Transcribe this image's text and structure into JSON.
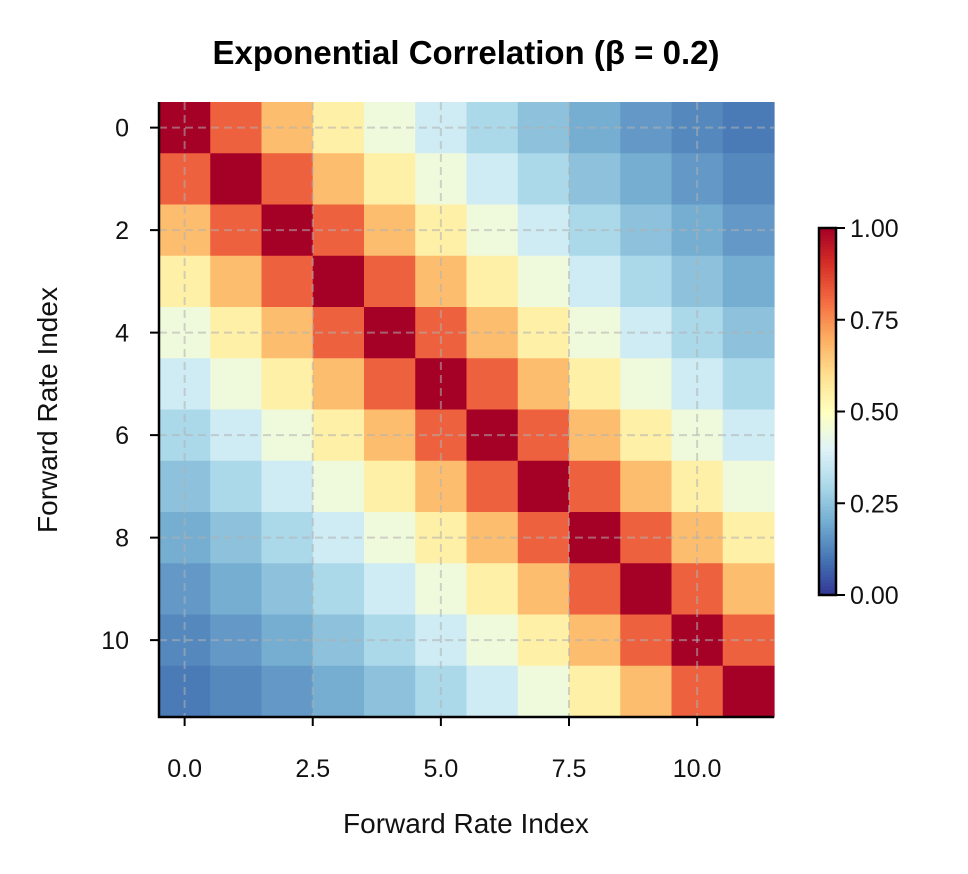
{
  "chart_data": {
    "type": "heatmap",
    "title": "Exponential Correlation (β = 0.2)",
    "xlabel": "Forward Rate Index",
    "ylabel": "Forward Rate Index",
    "colormap": "RdYlBu_r",
    "vmin": 0,
    "vmax": 1,
    "xticks": [
      0,
      2.5,
      5,
      7.5,
      10
    ],
    "xtick_labels": [
      "0.0",
      "2.5",
      "5.0",
      "7.5",
      "10.0"
    ],
    "yticks": [
      0,
      2,
      4,
      6,
      8,
      10
    ],
    "ytick_labels": [
      "0",
      "2",
      "4",
      "6",
      "8",
      "10"
    ],
    "grid": true,
    "colorbar": {
      "ticks": [
        0,
        0.25,
        0.5,
        0.75,
        1
      ],
      "tick_labels": [
        "0.00",
        "0.25",
        "0.50",
        "0.75",
        "1.00"
      ],
      "position": "right"
    },
    "matrix": [
      [
        1,
        0.819,
        0.67,
        0.549,
        0.449,
        0.368,
        0.301,
        0.247,
        0.202,
        0.165,
        0.135,
        0.111
      ],
      [
        0.819,
        1,
        0.819,
        0.67,
        0.549,
        0.449,
        0.368,
        0.301,
        0.247,
        0.202,
        0.165,
        0.135
      ],
      [
        0.67,
        0.819,
        1,
        0.819,
        0.67,
        0.549,
        0.449,
        0.368,
        0.301,
        0.247,
        0.202,
        0.165
      ],
      [
        0.549,
        0.67,
        0.819,
        1,
        0.819,
        0.67,
        0.549,
        0.449,
        0.368,
        0.301,
        0.247,
        0.202
      ],
      [
        0.449,
        0.549,
        0.67,
        0.819,
        1,
        0.819,
        0.67,
        0.549,
        0.449,
        0.368,
        0.301,
        0.247
      ],
      [
        0.368,
        0.449,
        0.549,
        0.67,
        0.819,
        1,
        0.819,
        0.67,
        0.549,
        0.449,
        0.368,
        0.301
      ],
      [
        0.301,
        0.368,
        0.449,
        0.549,
        0.67,
        0.819,
        1,
        0.819,
        0.67,
        0.549,
        0.449,
        0.368
      ],
      [
        0.247,
        0.301,
        0.368,
        0.449,
        0.549,
        0.67,
        0.819,
        1,
        0.819,
        0.67,
        0.549,
        0.449
      ],
      [
        0.202,
        0.247,
        0.301,
        0.368,
        0.449,
        0.549,
        0.67,
        0.819,
        1,
        0.819,
        0.67,
        0.549
      ],
      [
        0.165,
        0.202,
        0.247,
        0.301,
        0.368,
        0.449,
        0.549,
        0.67,
        0.819,
        1,
        0.819,
        0.67
      ],
      [
        0.135,
        0.165,
        0.202,
        0.247,
        0.301,
        0.368,
        0.449,
        0.549,
        0.67,
        0.819,
        1,
        0.819
      ],
      [
        0.111,
        0.135,
        0.165,
        0.202,
        0.247,
        0.301,
        0.368,
        0.449,
        0.549,
        0.67,
        0.819,
        1
      ]
    ]
  }
}
